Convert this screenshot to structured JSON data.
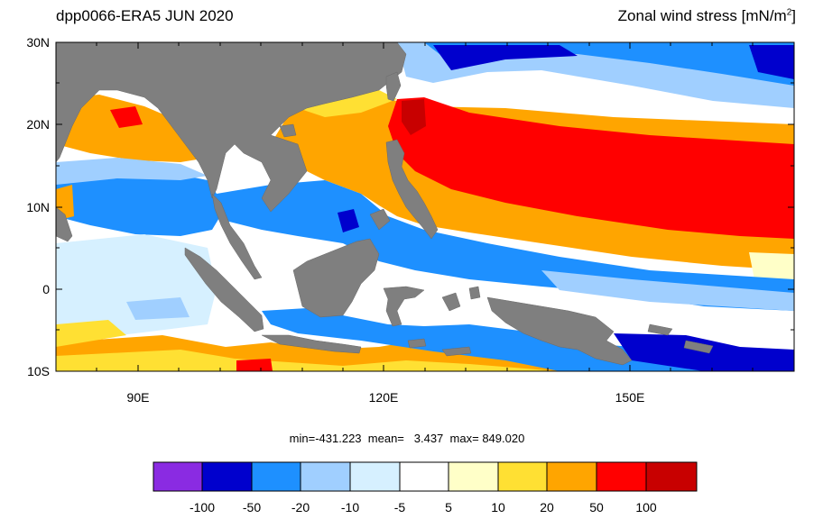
{
  "header": {
    "left_title": "dpp0066-ERA5  JUN 2020",
    "right_title_main": "Zonal wind stress [mN/m",
    "right_title_sup": "2",
    "right_title_end": "]"
  },
  "map": {
    "lat_labels": [
      "30N",
      "20N",
      "10N",
      "0",
      "10S"
    ],
    "lon_labels": [
      "90E",
      "120E",
      "150E"
    ],
    "lat_range": [
      -10,
      30
    ],
    "lon_range": [
      80,
      170
    ],
    "land_color": "#7f7f7f"
  },
  "stats": {
    "min_label": "min=",
    "min_value": "-431.223",
    "mean_label": "mean=",
    "mean_value": "3.437",
    "max_label": "max=",
    "max_value": "849.020"
  },
  "colorbar": {
    "colors": [
      "#8a2be2",
      "#0000cd",
      "#1e90ff",
      "#a0cfff",
      "#d6f0ff",
      "#ffffff",
      "#ffffc8",
      "#ffe033",
      "#ffa500",
      "#ff0000",
      "#c80000"
    ],
    "tick_labels": [
      "-100",
      "-50",
      "-20",
      "-10",
      "-5",
      "5",
      "10",
      "20",
      "50",
      "100"
    ]
  }
}
